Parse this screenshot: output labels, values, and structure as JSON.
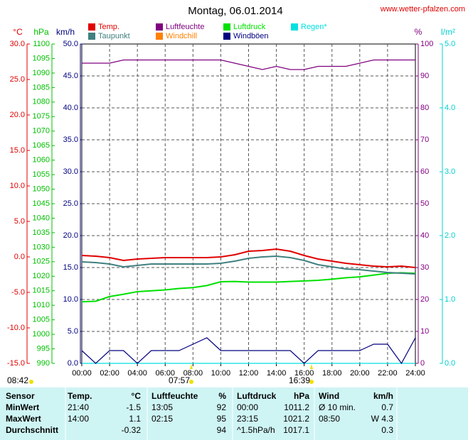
{
  "chart_data": {
    "type": "line",
    "title": "Montag, 06.01.2014",
    "source": "www.wetter-pfalzen.com",
    "x": [
      0,
      1,
      2,
      3,
      4,
      5,
      6,
      7,
      8,
      9,
      10,
      11,
      12,
      13,
      14,
      15,
      16,
      17,
      18,
      19,
      20,
      21,
      22,
      23,
      24
    ],
    "xlim": [
      0,
      24
    ],
    "xticks": [
      {
        "value": 0,
        "label": "00:00"
      },
      {
        "value": 2,
        "label": "02:00"
      },
      {
        "value": 4,
        "label": "04:00"
      },
      {
        "value": 6,
        "label": "06:00"
      },
      {
        "value": 8,
        "label": "08:00"
      },
      {
        "value": 10,
        "label": "10:00"
      },
      {
        "value": 12,
        "label": "12:00"
      },
      {
        "value": 14,
        "label": "14:00"
      },
      {
        "value": 16,
        "label": "16:00"
      },
      {
        "value": 18,
        "label": "18:00"
      },
      {
        "value": 20,
        "label": "20:00"
      },
      {
        "value": 22,
        "label": "22:00"
      },
      {
        "value": 24,
        "label": "24:00"
      }
    ],
    "grid": true,
    "axes": [
      {
        "label": "°C",
        "color": "#e00000",
        "lim": [
          -15,
          30
        ],
        "ticks": [
          {
            "value": -15,
            "label": "-15.0"
          },
          {
            "value": -10,
            "label": "-10.0"
          },
          {
            "value": -5,
            "label": "-5.0"
          },
          {
            "value": 0,
            "label": "0.0"
          },
          {
            "value": 5,
            "label": "5.0"
          },
          {
            "value": 10,
            "label": "10.0"
          },
          {
            "value": 15,
            "label": "15.0"
          },
          {
            "value": 20,
            "label": "20.0"
          },
          {
            "value": 25,
            "label": "25.0"
          },
          {
            "value": 30,
            "label": "30.0"
          }
        ]
      },
      {
        "label": "hPa",
        "color": "#00c000",
        "lim": [
          990,
          1100
        ],
        "ticks": [
          990,
          995,
          1000,
          1005,
          1010,
          1015,
          1020,
          1025,
          1030,
          1035,
          1040,
          1045,
          1050,
          1055,
          1060,
          1065,
          1070,
          1075,
          1080,
          1085,
          1090,
          1095,
          1100
        ]
      },
      {
        "label": "km/h",
        "color": "#000080",
        "lim": [
          0,
          50
        ],
        "ticks": [
          {
            "value": 0,
            "label": "0.0"
          },
          {
            "value": 5,
            "label": "5.0"
          },
          {
            "value": 10,
            "label": "10.0"
          },
          {
            "value": 15,
            "label": "15.0"
          },
          {
            "value": 20,
            "label": "20.0"
          },
          {
            "value": 25,
            "label": "25.0"
          },
          {
            "value": 30,
            "label": "30.0"
          },
          {
            "value": 35,
            "label": "35.0"
          },
          {
            "value": 40,
            "label": "40.0"
          },
          {
            "value": 45,
            "label": "45.0"
          },
          {
            "value": 50,
            "label": "50.0"
          }
        ]
      },
      {
        "label": "%",
        "color": "#800080",
        "lim": [
          0,
          100
        ],
        "ticks": [
          0,
          10,
          20,
          30,
          40,
          50,
          60,
          70,
          80,
          90,
          100
        ]
      },
      {
        "label": "l/m²",
        "color": "#00d0d0",
        "lim": [
          0,
          5
        ],
        "ticks": [
          {
            "value": 0,
            "label": "0.0"
          },
          {
            "value": 1,
            "label": "1.0"
          },
          {
            "value": 2,
            "label": "2.0"
          },
          {
            "value": 3,
            "label": "3.0"
          },
          {
            "value": 4,
            "label": "4.0"
          },
          {
            "value": 5,
            "label": "5.0"
          }
        ]
      }
    ],
    "series": [
      {
        "name": "Temp.",
        "color": "#e00000",
        "axis": 0,
        "values": [
          0.2,
          0.1,
          -0.1,
          -0.5,
          -0.3,
          -0.2,
          -0.1,
          -0.1,
          -0.1,
          -0.1,
          0.0,
          0.3,
          0.8,
          0.9,
          1.1,
          0.8,
          0.2,
          -0.3,
          -0.6,
          -0.9,
          -1.1,
          -1.3,
          -1.4,
          -1.3,
          -1.5
        ]
      },
      {
        "name": "Luftfeuchte",
        "color": "#800080",
        "axis": 3,
        "values": [
          94,
          94,
          94,
          95,
          95,
          95,
          95,
          95,
          95,
          95,
          95,
          94,
          93,
          92,
          93,
          92,
          92,
          93,
          93,
          93,
          94,
          95,
          95,
          95,
          95
        ]
      },
      {
        "name": "Luftdruck",
        "color": "#00e000",
        "axis": 1,
        "values": [
          1011.2,
          1011.4,
          1013.0,
          1013.8,
          1014.7,
          1015.0,
          1015.3,
          1015.8,
          1016.1,
          1016.8,
          1018.1,
          1018.2,
          1018.0,
          1018.0,
          1018.0,
          1018.2,
          1018.4,
          1018.6,
          1019.0,
          1019.5,
          1019.8,
          1020.4,
          1021.0,
          1021.2,
          1021.0
        ]
      },
      {
        "name": "Regen*",
        "color": "#00e0e0",
        "axis": 4,
        "values": [
          0,
          0,
          0,
          0,
          0,
          0,
          0,
          0,
          0,
          0,
          0,
          0,
          0,
          0,
          0,
          0,
          0,
          0,
          0,
          0,
          0,
          0,
          0,
          0,
          0
        ]
      },
      {
        "name": "Taupunkt",
        "color": "#408080",
        "axis": 0,
        "values": [
          -0.7,
          -0.8,
          -1.0,
          -1.4,
          -1.2,
          -1.0,
          -1.0,
          -1.0,
          -1.0,
          -1.0,
          -0.9,
          -0.6,
          -0.2,
          0.0,
          0.1,
          -0.1,
          -0.5,
          -1.1,
          -1.4,
          -1.7,
          -1.8,
          -2.0,
          -2.2,
          -2.3,
          -2.4
        ]
      },
      {
        "name": "Windchill",
        "color": "#ff8000",
        "axis": 0,
        "values": [
          null,
          null,
          null,
          null,
          null,
          null,
          null,
          null,
          null,
          null,
          null,
          null,
          null,
          null,
          null,
          null,
          null,
          null,
          null,
          null,
          null,
          null,
          null,
          null,
          null
        ]
      },
      {
        "name": "Windböen",
        "color": "#000080",
        "axis": 2,
        "values": [
          2,
          0,
          2,
          2,
          0,
          2,
          2,
          2,
          3,
          4,
          2,
          2,
          2,
          2,
          2,
          2,
          0,
          2,
          2,
          2,
          2,
          3,
          3,
          0,
          4
        ]
      }
    ],
    "sun": [
      "08:42",
      "07:57",
      "16:39"
    ]
  },
  "table": {
    "header": [
      "Sensor",
      "Temp.",
      "°C",
      "Luftfeuchte",
      "%",
      "Luftdruck",
      "hPa",
      "Wind",
      "km/h"
    ],
    "rows": [
      [
        "MinWert",
        "21:40",
        "-1.5",
        "13:05",
        "92",
        "00:00",
        "1011.2",
        "Ø 10 min.",
        "0.7"
      ],
      [
        "MaxWert",
        "14:00",
        "1.1",
        "02:15",
        "95",
        "23:15",
        "1021.2",
        "08:50",
        "W 4.3"
      ],
      [
        "Durchschnitt",
        null,
        "-0.32",
        null,
        "94",
        "^1.5hPa/h",
        "1017.1",
        null,
        "0.3"
      ]
    ]
  }
}
